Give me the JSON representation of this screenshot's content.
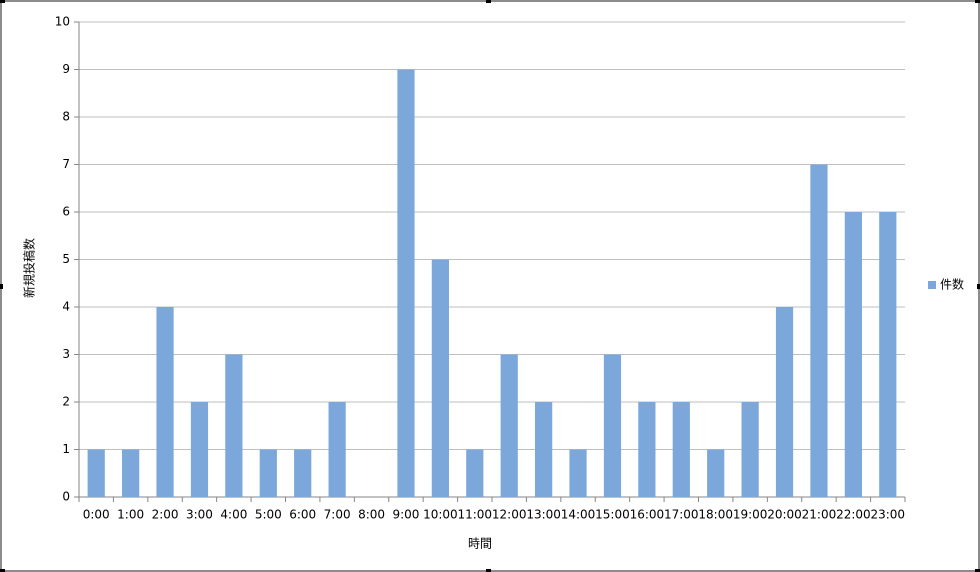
{
  "chart_data": {
    "type": "bar",
    "x_label": "時間",
    "y_label": "新規投稿数",
    "categories": [
      "0:00",
      "1:00",
      "2:00",
      "3:00",
      "4:00",
      "5:00",
      "6:00",
      "7:00",
      "8:00",
      "9:00",
      "10:00",
      "11:00",
      "12:00",
      "13:00",
      "14:00",
      "15:00",
      "16:00",
      "17:00",
      "18:00",
      "19:00",
      "20:00",
      "21:00",
      "22:00",
      "23:00"
    ],
    "series": [
      {
        "name": "件数",
        "color": "#7ba7db",
        "values": [
          1,
          1,
          4,
          2,
          3,
          1,
          1,
          2,
          0,
          9,
          5,
          1,
          3,
          2,
          1,
          3,
          2,
          2,
          1,
          2,
          4,
          7,
          6,
          6
        ]
      }
    ],
    "ylim": [
      0,
      10
    ],
    "yticks": [
      0,
      1,
      2,
      3,
      4,
      5,
      6,
      7,
      8,
      9,
      10
    ],
    "grid": true,
    "legend": "right"
  }
}
